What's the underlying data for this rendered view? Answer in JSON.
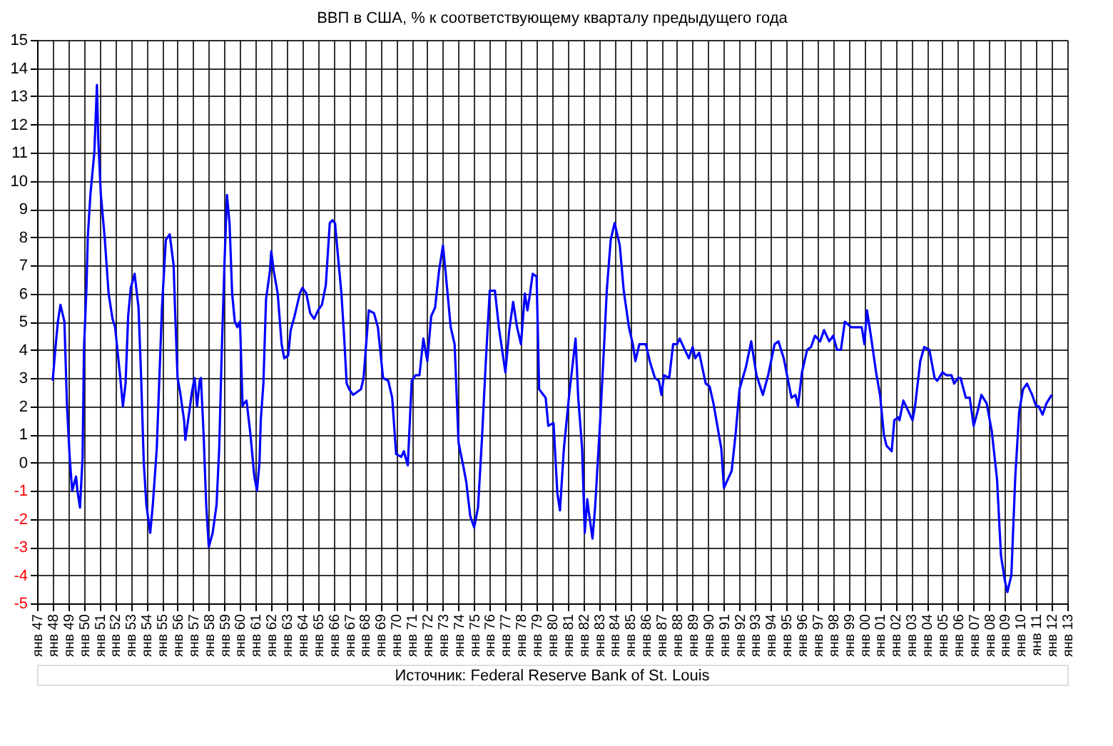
{
  "chart_data": {
    "type": "line",
    "title": "ВВП в США, % к соответствующему кварталу предыдущего года",
    "annotations": [
      "Источник: Federal Reserve Bank of St. Louis"
    ],
    "series": [
      {
        "color": "#0000ff",
        "x": [
          "1948-01",
          "1948-03",
          "1948-05",
          "1948-07",
          "1948-10",
          "1948-12",
          "1949-02",
          "1949-04",
          "1949-07",
          "1949-08",
          "1949-10",
          "1949-12",
          "1950-01",
          "1950-03",
          "1950-04",
          "1950-06",
          "1950-09",
          "1950-11",
          "1950-12",
          "1951-02",
          "1951-05",
          "1951-08",
          "1951-11",
          "1952-01",
          "1952-05",
          "1952-07",
          "1952-09",
          "1952-11",
          "1953-01",
          "1953-04",
          "1953-07",
          "1953-09",
          "1953-11",
          "1954-01",
          "1954-04",
          "1954-06",
          "1954-09",
          "1954-11",
          "1955-01",
          "1955-04",
          "1955-07",
          "1955-10",
          "1955-11",
          "1956-01",
          "1956-03",
          "1956-06",
          "1956-07",
          "1956-10",
          "1956-12",
          "1957-02",
          "1957-04",
          "1957-06",
          "1957-07",
          "1957-09",
          "1957-11",
          "1958-01",
          "1958-04",
          "1958-07",
          "1958-09",
          "1958-11",
          "1959-01",
          "1959-03",
          "1959-05",
          "1959-07",
          "1959-09",
          "1959-11",
          "1960-01",
          "1960-03",
          "1960-04",
          "1960-06",
          "1960-09",
          "1960-12",
          "1961-02",
          "1961-04",
          "1961-05",
          "1961-07",
          "1961-09",
          "1961-12",
          "1962-01",
          "1962-03",
          "1962-06",
          "1962-09",
          "1962-11",
          "1963-02",
          "1963-04",
          "1963-07",
          "1963-11",
          "1964-01",
          "1964-04",
          "1964-07",
          "1964-10",
          "1965-01",
          "1965-04",
          "1965-07",
          "1965-10",
          "1965-12",
          "1966-02",
          "1966-04",
          "1966-07",
          "1966-09",
          "1966-11",
          "1967-01",
          "1967-04",
          "1967-07",
          "1967-10",
          "1967-12",
          "1968-04",
          "1968-08",
          "1968-11",
          "1969-03",
          "1969-07",
          "1969-10",
          "1970-01",
          "1970-05",
          "1970-07",
          "1970-10",
          "1971-01",
          "1971-04",
          "1971-07",
          "1971-10",
          "1972-01",
          "1972-04",
          "1972-07",
          "1972-10",
          "1973-01",
          "1973-03",
          "1973-07",
          "1973-10",
          "1974-01",
          "1974-05",
          "1974-07",
          "1974-10",
          "1975-01",
          "1975-04",
          "1975-07",
          "1975-10",
          "1976-01",
          "1976-05",
          "1976-08",
          "1977-01",
          "1977-04",
          "1977-07",
          "1977-10",
          "1978-01",
          "1978-04",
          "1978-06",
          "1978-08",
          "1978-10",
          "1979-01",
          "1979-03",
          "1979-08",
          "1979-10",
          "1980-02",
          "1980-05",
          "1980-07",
          "1980-10",
          "1981-02",
          "1981-07",
          "1981-09",
          "1981-12",
          "1982-02",
          "1982-04",
          "1982-05",
          "1982-08",
          "1982-10",
          "1983-02",
          "1983-05",
          "1983-07",
          "1983-10",
          "1984-01",
          "1984-05",
          "1984-08",
          "1984-12",
          "1985-03",
          "1985-05",
          "1985-08",
          "1986-01",
          "1986-04",
          "1986-08",
          "1986-11",
          "1987-01",
          "1987-03",
          "1987-07",
          "1987-10",
          "1988-01",
          "1988-03",
          "1988-06",
          "1988-10",
          "1989-01",
          "1989-03",
          "1989-06",
          "1989-11",
          "1990-02",
          "1990-05",
          "1990-08",
          "1990-11",
          "1991-01",
          "1991-07",
          "1991-10",
          "1992-01",
          "1992-06",
          "1992-10",
          "1993-02",
          "1993-07",
          "1993-11",
          "1994-04",
          "1994-07",
          "1994-11",
          "1995-05",
          "1995-08",
          "1995-10",
          "1996-01",
          "1996-05",
          "1996-08",
          "1996-11",
          "1997-03",
          "1997-06",
          "1997-10",
          "1998-01",
          "1998-04",
          "1998-07",
          "1998-10",
          "1999-03",
          "1999-07",
          "1999-11",
          "2000-01",
          "2000-03",
          "2000-06",
          "2000-10",
          "2001-01",
          "2001-04",
          "2001-06",
          "2001-10",
          "2001-12",
          "2002-03",
          "2002-04",
          "2002-07",
          "2002-11",
          "2003-02",
          "2003-04",
          "2003-08",
          "2003-11",
          "2004-03",
          "2004-07",
          "2004-09",
          "2005-01",
          "2005-04",
          "2005-08",
          "2005-10",
          "2006-01",
          "2006-03",
          "2006-07",
          "2006-10",
          "2007-01",
          "2007-04",
          "2007-07",
          "2007-11",
          "2008-03",
          "2008-07",
          "2008-10",
          "2009-01",
          "2009-03",
          "2009-06",
          "2009-09",
          "2009-12",
          "2010-03",
          "2010-06",
          "2010-10",
          "2011-01",
          "2011-03",
          "2011-06",
          "2011-09",
          "2012-01"
        ],
        "values": [
          2.9,
          4.0,
          5.0,
          5.6,
          5.0,
          2.0,
          0.2,
          -1.0,
          -0.5,
          -1.0,
          -1.6,
          0.2,
          4.0,
          6.2,
          8.0,
          9.5,
          11.0,
          13.4,
          11.5,
          9.5,
          8.0,
          6.0,
          5.1,
          4.8,
          3.0,
          2.0,
          2.8,
          5.2,
          6.2,
          6.7,
          5.5,
          3.0,
          0.0,
          -1.5,
          -2.5,
          -1.5,
          0.5,
          3.0,
          5.5,
          7.9,
          8.1,
          7.0,
          5.5,
          3.0,
          2.5,
          1.5,
          0.8,
          1.8,
          2.5,
          3.0,
          2.0,
          2.9,
          3.0,
          1.0,
          -1.5,
          -3.0,
          -2.5,
          -1.5,
          0.5,
          4.0,
          7.0,
          9.5,
          8.5,
          6.0,
          5.0,
          4.8,
          5.0,
          2.0,
          2.1,
          2.2,
          1.0,
          -0.5,
          -1.0,
          0.0,
          1.5,
          2.8,
          5.8,
          6.8,
          7.5,
          6.8,
          6.0,
          4.2,
          3.7,
          3.8,
          4.7,
          5.2,
          6.0,
          6.2,
          6.0,
          5.3,
          5.1,
          5.4,
          5.6,
          6.3,
          8.5,
          8.6,
          8.5,
          7.5,
          6.0,
          4.5,
          2.8,
          2.6,
          2.4,
          2.5,
          2.6,
          3.0,
          5.4,
          5.3,
          4.8,
          3.0,
          2.9,
          2.3,
          0.3,
          0.2,
          0.4,
          -0.1,
          2.9,
          3.1,
          3.1,
          4.4,
          3.6,
          5.2,
          5.5,
          6.8,
          7.7,
          6.8,
          4.8,
          4.2,
          0.7,
          -0.2,
          -0.7,
          -1.9,
          -2.3,
          -1.6,
          0.8,
          3.6,
          6.1,
          6.1,
          4.8,
          3.2,
          4.7,
          5.7,
          4.8,
          4.2,
          6.0,
          5.4,
          6.0,
          6.7,
          6.6,
          2.6,
          2.3,
          1.3,
          1.4,
          -1.1,
          -1.7,
          0.5,
          2.4,
          4.4,
          2.3,
          0.5,
          -2.5,
          -1.3,
          -1.7,
          -2.7,
          -1.6,
          1.6,
          4.2,
          6.1,
          7.9,
          8.5,
          7.7,
          6.1,
          4.8,
          4.2,
          3.6,
          4.2,
          4.2,
          3.6,
          3.0,
          2.9,
          2.4,
          3.1,
          3.0,
          4.2,
          4.2,
          4.4,
          4.1,
          3.7,
          4.1,
          3.7,
          3.9,
          2.8,
          2.7,
          2.1,
          1.3,
          0.5,
          -0.9,
          -0.3,
          1.0,
          2.6,
          3.4,
          4.3,
          3.1,
          2.4,
          3.1,
          4.2,
          4.3,
          3.7,
          2.3,
          2.4,
          2.0,
          3.2,
          4.0,
          4.1,
          4.5,
          4.3,
          4.7,
          4.3,
          4.5,
          4.0,
          4.0,
          5.0,
          4.8,
          4.8,
          4.8,
          4.2,
          5.4,
          4.5,
          3.2,
          2.4,
          1.0,
          0.6,
          0.4,
          1.5,
          1.6,
          1.5,
          2.2,
          1.8,
          1.5,
          2.0,
          3.6,
          4.1,
          4.0,
          3.0,
          2.9,
          3.2,
          3.1,
          3.1,
          2.8,
          3.0,
          3.0,
          2.3,
          2.3,
          1.3,
          1.8,
          2.4,
          2.1,
          1.1,
          -0.6,
          -3.3,
          -4.2,
          -4.6,
          -4.0,
          -0.5,
          1.8,
          2.6,
          2.8,
          2.4,
          2.0,
          2.0,
          1.7,
          2.1,
          2.4
        ]
      }
    ],
    "xlim": [
      "1947-01",
      "2013-01"
    ],
    "xticks": [
      {
        "value": "1947-01",
        "label": "янв 47"
      },
      {
        "value": "1948-01",
        "label": "янв 48"
      },
      {
        "value": "1949-01",
        "label": "янв 49"
      },
      {
        "value": "1950-01",
        "label": "янв 50"
      },
      {
        "value": "1951-01",
        "label": "янв 51"
      },
      {
        "value": "1952-01",
        "label": "янв 52"
      },
      {
        "value": "1953-01",
        "label": "янв 53"
      },
      {
        "value": "1954-01",
        "label": "янв 54"
      },
      {
        "value": "1955-01",
        "label": "янв 55"
      },
      {
        "value": "1956-01",
        "label": "янв 56"
      },
      {
        "value": "1957-01",
        "label": "янв 57"
      },
      {
        "value": "1958-01",
        "label": "янв 58"
      },
      {
        "value": "1959-01",
        "label": "янв 59"
      },
      {
        "value": "1960-01",
        "label": "янв 60"
      },
      {
        "value": "1961-01",
        "label": "янв 61"
      },
      {
        "value": "1962-01",
        "label": "янв 62"
      },
      {
        "value": "1963-01",
        "label": "янв 63"
      },
      {
        "value": "1964-01",
        "label": "янв 64"
      },
      {
        "value": "1965-01",
        "label": "янв 65"
      },
      {
        "value": "1966-01",
        "label": "янв 66"
      },
      {
        "value": "1967-01",
        "label": "янв 67"
      },
      {
        "value": "1968-01",
        "label": "янв 68"
      },
      {
        "value": "1969-01",
        "label": "янв 69"
      },
      {
        "value": "1970-01",
        "label": "янв 70"
      },
      {
        "value": "1971-01",
        "label": "янв 71"
      },
      {
        "value": "1972-01",
        "label": "янв 72"
      },
      {
        "value": "1973-01",
        "label": "янв 73"
      },
      {
        "value": "1974-01",
        "label": "янв 74"
      },
      {
        "value": "1975-01",
        "label": "янв 75"
      },
      {
        "value": "1976-01",
        "label": "янв 76"
      },
      {
        "value": "1977-01",
        "label": "янв 77"
      },
      {
        "value": "1978-01",
        "label": "янв 78"
      },
      {
        "value": "1979-01",
        "label": "янв 79"
      },
      {
        "value": "1980-01",
        "label": "янв 80"
      },
      {
        "value": "1981-01",
        "label": "янв 81"
      },
      {
        "value": "1982-01",
        "label": "янв 82"
      },
      {
        "value": "1983-01",
        "label": "янв 83"
      },
      {
        "value": "1984-01",
        "label": "янв 84"
      },
      {
        "value": "1985-01",
        "label": "янв 85"
      },
      {
        "value": "1986-01",
        "label": "янв 86"
      },
      {
        "value": "1987-01",
        "label": "янв 87"
      },
      {
        "value": "1988-01",
        "label": "янв 88"
      },
      {
        "value": "1989-01",
        "label": "янв 89"
      },
      {
        "value": "1990-01",
        "label": "янв 90"
      },
      {
        "value": "1991-01",
        "label": "янв 91"
      },
      {
        "value": "1992-01",
        "label": "янв 92"
      },
      {
        "value": "1993-01",
        "label": "янв 93"
      },
      {
        "value": "1994-01",
        "label": "янв 94"
      },
      {
        "value": "1995-01",
        "label": "янв 95"
      },
      {
        "value": "1996-01",
        "label": "янв 96"
      },
      {
        "value": "1997-01",
        "label": "янв 97"
      },
      {
        "value": "1998-01",
        "label": "янв 98"
      },
      {
        "value": "1999-01",
        "label": "янв 99"
      },
      {
        "value": "2000-01",
        "label": "янв 00"
      },
      {
        "value": "2001-01",
        "label": "янв 01"
      },
      {
        "value": "2002-01",
        "label": "янв 02"
      },
      {
        "value": "2003-01",
        "label": "янв 03"
      },
      {
        "value": "2004-01",
        "label": "янв 04"
      },
      {
        "value": "2005-01",
        "label": "янв 05"
      },
      {
        "value": "2006-01",
        "label": "янв 06"
      },
      {
        "value": "2007-01",
        "label": "янв 07"
      },
      {
        "value": "2008-01",
        "label": "янв 08"
      },
      {
        "value": "2009-01",
        "label": "янв 09"
      },
      {
        "value": "2010-01",
        "label": "янв 10"
      },
      {
        "value": "2011-01",
        "label": "янв 11"
      },
      {
        "value": "2012-01",
        "label": "янв 12"
      },
      {
        "value": "2013-01",
        "label": "янв 13"
      }
    ],
    "ylim": [
      -5,
      15
    ],
    "yticks": [
      -5,
      -4,
      -3,
      -2,
      -1,
      0,
      1,
      2,
      3,
      4,
      5,
      6,
      7,
      8,
      9,
      10,
      11,
      12,
      13,
      14,
      15
    ],
    "grid": true,
    "marker": "none",
    "line_style": "solid"
  }
}
